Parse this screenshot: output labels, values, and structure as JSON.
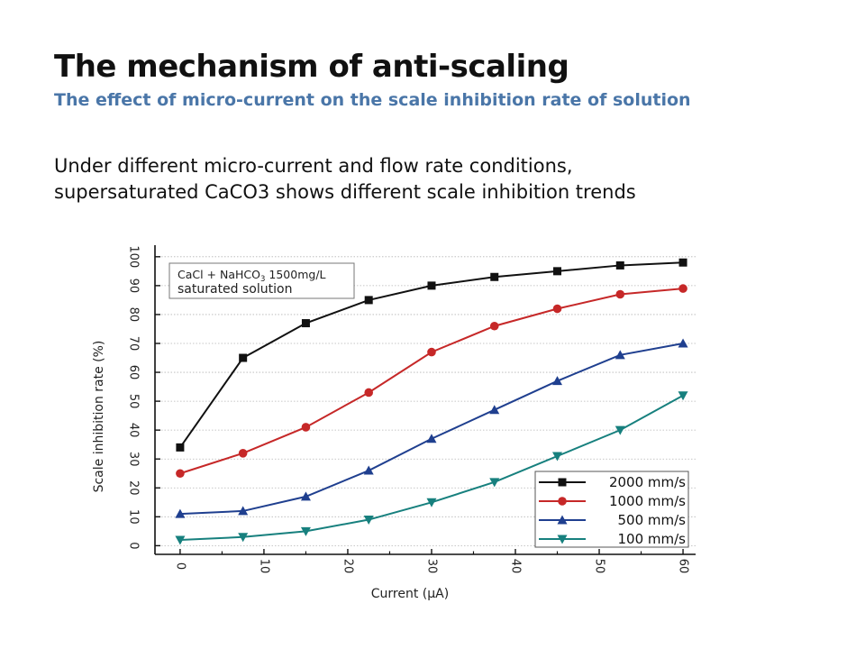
{
  "slide": {
    "title": "The mechanism of anti-scaling",
    "subtitle": "The effect of micro-current on the scale inhibition rate of solution",
    "body_lines": [
      "Under different micro-current and flow rate conditions,",
      "supersaturated CaCO3 shows different scale inhibition trends"
    ]
  },
  "chart_data": {
    "type": "line",
    "xlabel": "Current (μA)",
    "ylabel": "Scale inhibition rate (%)",
    "xlim": [
      -3,
      61.5
    ],
    "ylim": [
      -3,
      104
    ],
    "xticks": [
      0,
      10,
      20,
      30,
      40,
      50,
      60
    ],
    "yticks": [
      0,
      10,
      20,
      30,
      40,
      50,
      60,
      70,
      80,
      90,
      100
    ],
    "grid": true,
    "legend_position": "bottom-right",
    "annotation": {
      "line1_prefix": "CaCl + NaHCO",
      "line1_sub": "3",
      "line1_suffix": " 1500mg/L",
      "line2": "saturated solution"
    },
    "x": [
      0,
      7.5,
      15,
      22.5,
      30,
      37.5,
      45,
      52.5,
      60
    ],
    "series": [
      {
        "name": "2000 mm/s",
        "color": "#111111",
        "marker": "square",
        "values": [
          34,
          65,
          77,
          85,
          90,
          93,
          95,
          97,
          98
        ]
      },
      {
        "name": "1000 mm/s",
        "color": "#c62828",
        "marker": "circle",
        "values": [
          25,
          32,
          41,
          53,
          67,
          76,
          82,
          87,
          89
        ]
      },
      {
        "name": "500 mm/s",
        "color": "#1f3f8f",
        "marker": "triangle-up",
        "values": [
          11,
          12,
          17,
          26,
          37,
          47,
          57,
          66,
          70
        ]
      },
      {
        "name": "100 mm/s",
        "color": "#17807e",
        "marker": "triangle-down",
        "values": [
          2,
          3,
          5,
          9,
          15,
          22,
          31,
          40,
          52
        ]
      }
    ]
  }
}
